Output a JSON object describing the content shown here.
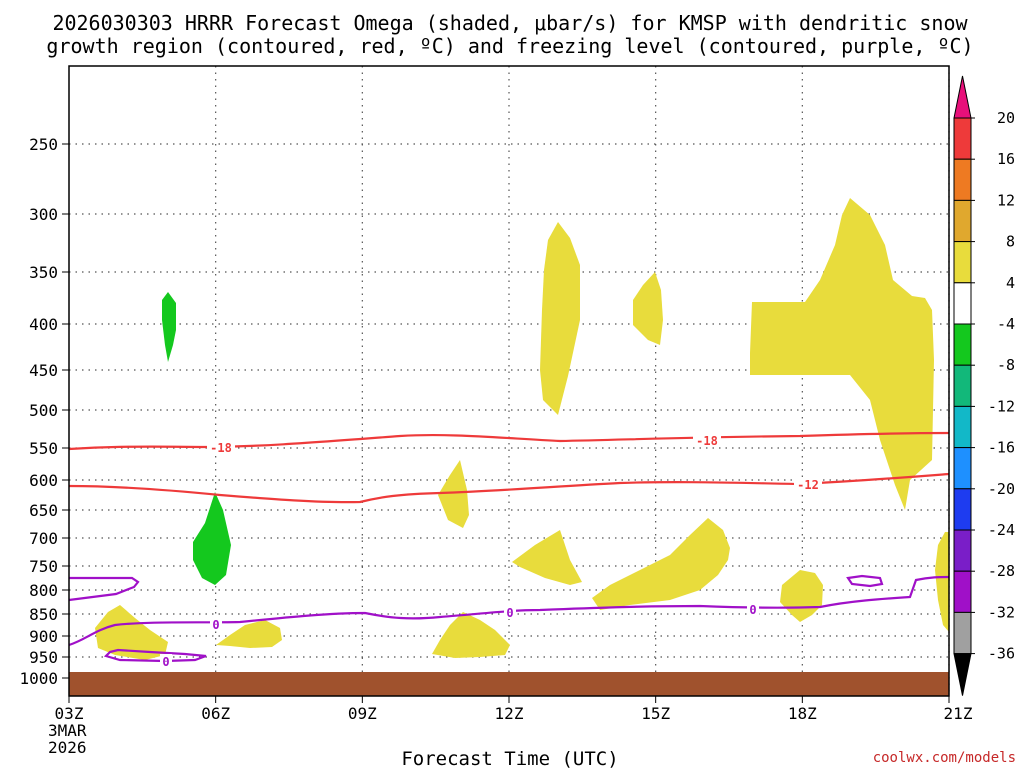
{
  "chart_data": {
    "type": "contour-timeheight",
    "title_line1": "2026030303 HRRR Forecast Omega (shaded, μbar/s) for KMSP with dendritic snow",
    "title_line2": "growth region (contoured, red, ºC) and freezing level (contoured, purple, ºC)",
    "xlabel": "Forecast Time (UTC)",
    "x_ticks": [
      {
        "hour": 3,
        "label": "03Z",
        "sub1": "3MAR",
        "sub2": "2026"
      },
      {
        "hour": 6,
        "label": "06Z"
      },
      {
        "hour": 9,
        "label": "09Z"
      },
      {
        "hour": 12,
        "label": "12Z"
      },
      {
        "hour": 15,
        "label": "15Z"
      },
      {
        "hour": 18,
        "label": "18Z"
      },
      {
        "hour": 21,
        "label": "21Z"
      }
    ],
    "y_ticks_hPa": [
      250,
      300,
      350,
      400,
      450,
      500,
      550,
      600,
      650,
      700,
      750,
      800,
      850,
      900,
      950,
      1000
    ],
    "ylim_hPa": [
      1000,
      200
    ],
    "colorbar": {
      "levels": [
        "20",
        "16",
        "12",
        "8",
        "4",
        "-4",
        "-8",
        "-12",
        "-16",
        "-20",
        "-24",
        "-28",
        "-32",
        "-36"
      ],
      "colors": [
        "#e8107a",
        "#ee3a3a",
        "#ee7a22",
        "#e0a82e",
        "#e8dc3c",
        "#ffffff",
        "#14c81e",
        "#12b87a",
        "#12b8c8",
        "#1e90ff",
        "#1e3cf0",
        "#7a1ec8",
        "#a010c8",
        "#a0a0a0",
        "#000000"
      ]
    },
    "contours_temperature_C": [
      {
        "label": "-18",
        "color": "#ee3a3a"
      },
      {
        "label": "-18",
        "color": "#ee3a3a"
      },
      {
        "label": "-12",
        "color": "#ee3a3a"
      }
    ],
    "contours_freezing_C": [
      {
        "label": "0",
        "color": "#a010c8"
      },
      {
        "label": "0",
        "color": "#a010c8"
      },
      {
        "label": "0",
        "color": "#a010c8"
      },
      {
        "label": "0",
        "color": "#a010c8"
      }
    ],
    "shaded_colors": {
      "upward_weak": "#14c81e",
      "downward_weak": "#e8dc3c",
      "ground": "#a0522d"
    },
    "credit": "coolwx.com/models"
  }
}
